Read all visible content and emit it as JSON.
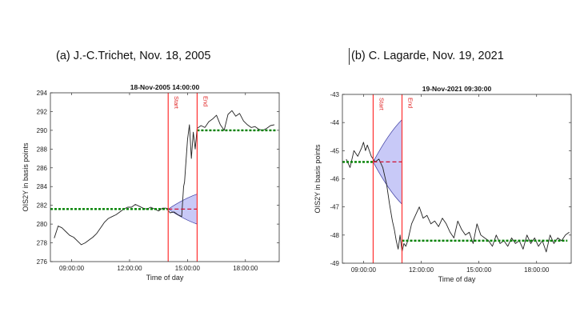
{
  "captions": {
    "left": "(a) J.-C.Trichet, Nov. 18, 2005",
    "right": "(b) C. Lagarde, Nov. 19, 2021"
  },
  "colors": {
    "price": "#222222",
    "event_line": "#ff3030",
    "pre_level": "#008000",
    "post_level": "#008000",
    "projection": "#d01030",
    "cone_fill": "#9a9cf0",
    "cone_edge": "#3a3aa0"
  },
  "chart_data": [
    {
      "type": "line",
      "title": "18-Nov-2005 14:00:00",
      "xlabel": "Time of day",
      "ylabel": "OIS2Y in basis points",
      "x_unit": "hours",
      "xlim": [
        7.9,
        19.75
      ],
      "ylim": [
        276,
        294
      ],
      "xticks": [
        9,
        12,
        15,
        18
      ],
      "xtick_labels": [
        "09:00:00",
        "12:00:00",
        "15:00:00",
        "18:00:00"
      ],
      "yticks": [
        276,
        278,
        280,
        282,
        284,
        286,
        288,
        290,
        292,
        294
      ],
      "grid": false,
      "event_window": {
        "start": 14.0,
        "end": 15.5,
        "start_label": "Start",
        "end_label": "End"
      },
      "pre_event_level": {
        "from": 7.9,
        "to": 14.0,
        "value": 281.6
      },
      "post_event_level": {
        "from": 15.5,
        "to": 19.6,
        "value": 290.0
      },
      "projection": {
        "from": 14.0,
        "to": 15.5,
        "value": 281.6
      },
      "cone": {
        "from": 14.0,
        "to": 15.5,
        "upper": 283.2,
        "lower": 280.0
      },
      "series": [
        {
          "x": [
            8.1,
            8.3,
            8.5,
            8.7,
            8.9,
            9.1,
            9.3,
            9.5,
            9.7,
            9.9,
            10.1,
            10.3,
            10.5,
            10.7,
            10.9,
            11.1,
            11.3,
            11.5,
            11.7,
            11.9,
            12.1,
            12.3,
            12.5,
            12.7,
            12.9,
            13.1,
            13.3,
            13.5,
            13.7,
            13.9,
            14.1,
            14.3,
            14.5,
            14.7,
            14.8,
            14.85,
            14.9,
            15.0,
            15.1,
            15.2,
            15.3,
            15.4,
            15.5,
            15.7,
            15.9,
            16.1,
            16.3,
            16.5,
            16.7,
            16.9,
            17.1,
            17.3,
            17.5,
            17.7,
            17.9,
            18.1,
            18.3,
            18.5,
            18.7,
            18.9,
            19.1,
            19.3,
            19.5
          ],
          "y": [
            278.5,
            279.8,
            279.6,
            279.2,
            278.8,
            278.6,
            278.2,
            277.8,
            278.0,
            278.3,
            278.6,
            279.0,
            279.6,
            280.2,
            280.6,
            280.8,
            281.0,
            281.3,
            281.6,
            281.8,
            281.8,
            282.1,
            281.9,
            281.7,
            281.6,
            281.8,
            281.6,
            281.4,
            281.7,
            281.7,
            281.2,
            281.3,
            281.0,
            280.8,
            284.0,
            284.5,
            286.0,
            289.0,
            290.6,
            287.0,
            289.8,
            288.0,
            290.2,
            290.5,
            290.3,
            290.9,
            291.2,
            291.6,
            290.6,
            290.0,
            291.7,
            292.1,
            291.5,
            291.8,
            291.0,
            290.6,
            290.3,
            290.4,
            290.1,
            290.0,
            290.2,
            290.5,
            290.6
          ]
        }
      ]
    },
    {
      "type": "line",
      "title": "19-Nov-2021 09:30:00",
      "xlabel": "Time of day",
      "ylabel": "OIS2Y in basis points",
      "x_unit": "hours",
      "xlim": [
        7.9,
        19.8
      ],
      "ylim": [
        -49,
        -43
      ],
      "xticks": [
        9,
        12,
        15,
        18
      ],
      "xtick_labels": [
        "09:00:00",
        "12:00:00",
        "15:00:00",
        "18:00:00"
      ],
      "yticks": [
        -49,
        -48,
        -47,
        -46,
        -45,
        -44,
        -43
      ],
      "grid": false,
      "event_window": {
        "start": 9.5,
        "end": 11.0,
        "start_label": "Start",
        "end_label": "End"
      },
      "pre_event_level": {
        "from": 7.9,
        "to": 9.5,
        "value": -45.4
      },
      "post_event_level": {
        "from": 11.0,
        "to": 19.6,
        "value": -48.2
      },
      "projection": {
        "from": 9.5,
        "to": 11.0,
        "value": -45.4
      },
      "cone": {
        "from": 9.5,
        "to": 11.0,
        "upper": -43.9,
        "lower": -46.9
      },
      "series": [
        {
          "x": [
            8.1,
            8.3,
            8.5,
            8.7,
            8.9,
            9.0,
            9.1,
            9.2,
            9.4,
            9.6,
            9.8,
            10.0,
            10.1,
            10.2,
            10.35,
            10.5,
            10.6,
            10.7,
            10.8,
            10.9,
            11.0,
            11.1,
            11.2,
            11.3,
            11.5,
            11.7,
            11.9,
            12.1,
            12.3,
            12.5,
            12.7,
            12.9,
            13.1,
            13.3,
            13.5,
            13.7,
            13.9,
            14.1,
            14.3,
            14.5,
            14.7,
            14.9,
            15.1,
            15.3,
            15.5,
            15.7,
            15.9,
            16.1,
            16.3,
            16.5,
            16.7,
            16.9,
            17.1,
            17.3,
            17.5,
            17.7,
            17.9,
            18.1,
            18.3,
            18.5,
            18.7,
            18.9,
            19.1,
            19.3,
            19.5,
            19.7
          ],
          "y": [
            -45.3,
            -45.6,
            -45.0,
            -45.2,
            -44.9,
            -44.7,
            -45.0,
            -44.8,
            -45.2,
            -45.4,
            -45.3,
            -45.6,
            -45.9,
            -46.2,
            -46.9,
            -47.5,
            -47.8,
            -48.2,
            -48.5,
            -48.0,
            -48.6,
            -48.3,
            -48.4,
            -48.2,
            -47.6,
            -47.3,
            -47.0,
            -47.4,
            -47.3,
            -47.6,
            -47.5,
            -47.7,
            -47.4,
            -47.6,
            -47.9,
            -48.1,
            -47.5,
            -47.8,
            -48.0,
            -47.9,
            -48.3,
            -47.6,
            -48.0,
            -48.1,
            -48.2,
            -48.4,
            -48.0,
            -48.3,
            -48.2,
            -48.4,
            -48.1,
            -48.3,
            -48.2,
            -48.5,
            -48.0,
            -48.3,
            -48.1,
            -48.4,
            -48.2,
            -48.6,
            -48.0,
            -48.3,
            -48.1,
            -48.2,
            -48.0,
            -47.9
          ]
        }
      ]
    }
  ]
}
